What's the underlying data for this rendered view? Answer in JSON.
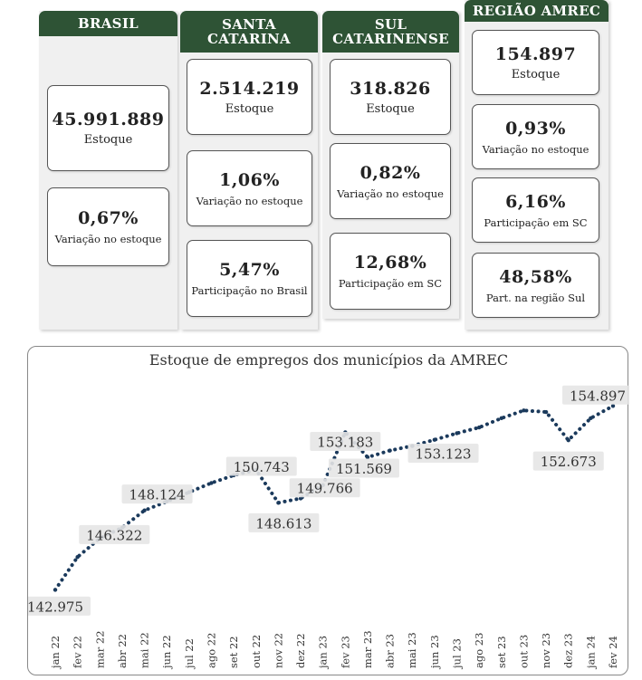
{
  "panels": {
    "brasil": {
      "header": "BRASIL",
      "cards": [
        {
          "value": "45.991.889",
          "label": "Estoque"
        },
        {
          "value": "0,67%",
          "label": "Variação no estoque"
        }
      ]
    },
    "santa_catarina": {
      "header_line1": "SANTA",
      "header_line2": "CATARINA",
      "cards": [
        {
          "value": "2.514.219",
          "label": "Estoque"
        },
        {
          "value": "1,06%",
          "label": "Variação no estoque"
        },
        {
          "value": "5,47%",
          "label": "Participação no Brasil"
        }
      ]
    },
    "sul_catarinense": {
      "header_line1": "SUL",
      "header_line2": "CATARINENSE",
      "cards": [
        {
          "value": "318.826",
          "label": "Estoque"
        },
        {
          "value": "0,82%",
          "label": "Variação no estoque"
        },
        {
          "value": "12,68%",
          "label": "Participação em SC"
        }
      ]
    },
    "regiao_amrec": {
      "header": "REGIÃO AMREC",
      "cards": [
        {
          "value": "154.897",
          "label": "Estoque"
        },
        {
          "value": "0,93%",
          "label": "Variação no estoque"
        },
        {
          "value": "6,16%",
          "label": "Participação em SC"
        },
        {
          "value": "48,58%",
          "label": "Part. na região Sul"
        }
      ]
    }
  },
  "colors": {
    "header_bg": "#2e5335",
    "line": "#1b3a5c",
    "label_bg": "#e6e6e6"
  },
  "chart_data": {
    "type": "line",
    "title": "Estoque de empregos dos municípios da AMREC",
    "xlabel": "",
    "ylabel": "",
    "categories": [
      "jan 22",
      "fev 22",
      "mar 22",
      "abr 22",
      "mai 22",
      "jun 22",
      "jul 22",
      "ago 22",
      "set 22",
      "out 22",
      "nov 22",
      "dez 22",
      "jan 23",
      "fev 23",
      "mar 23",
      "abr 23",
      "mai 23",
      "jun 23",
      "jul 23",
      "ago 23",
      "set 23",
      "out 23",
      "nov 23",
      "dez 23",
      "jan 24",
      "fev 24"
    ],
    "values": [
      142975,
      145100,
      146322,
      147000,
      148124,
      148700,
      149300,
      149900,
      150400,
      150743,
      148613,
      148900,
      149766,
      153183,
      151569,
      152000,
      152300,
      152700,
      153123,
      153500,
      154100,
      154600,
      154500,
      152673,
      154100,
      154897
    ],
    "data_labels": [
      {
        "index": 0,
        "text": "142.975"
      },
      {
        "index": 2,
        "text": "146.322"
      },
      {
        "index": 4,
        "text": "148.124"
      },
      {
        "index": 9,
        "text": "150.743"
      },
      {
        "index": 10,
        "text": "148.613"
      },
      {
        "index": 12,
        "text": "149.766"
      },
      {
        "index": 13,
        "text": "153.183"
      },
      {
        "index": 14,
        "text": "151.569"
      },
      {
        "index": 18,
        "text": "153.123"
      },
      {
        "index": 23,
        "text": "152.673"
      },
      {
        "index": 25,
        "text": "154.897"
      }
    ],
    "ylim": [
      142000,
      155500
    ],
    "grid": false,
    "legend": "none"
  }
}
